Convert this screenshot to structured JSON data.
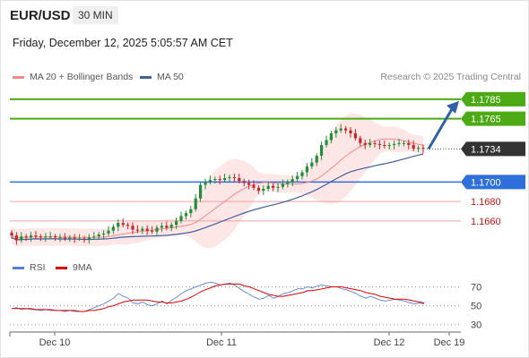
{
  "header": {
    "symbol": "EUR/USD",
    "timeframe": "30 MIN",
    "datetime": "Friday, December 12, 2025 5:05:57 AM CET",
    "research": "Research © 2025 Trading Central"
  },
  "colors": {
    "candle_up": "#1f8f3a",
    "candle_down": "#c62828",
    "ma20": "#f08a8a",
    "bollinger_fill": "#fde3e3",
    "ma50": "#3f5f9e",
    "resistance": "#4caa14",
    "pivot": "#2f6fdb",
    "support": "#f4a0a0",
    "support_text": "#cc1111",
    "current": "#333333",
    "arrow": "#2f5fa8",
    "rsi": "#5b7fd0",
    "rsi_ma": "#e00000"
  },
  "chart_data": [
    {
      "type": "candlestick",
      "legend": [
        {
          "name": "MA 20 + Bollinger Bands",
          "color": "#f08a8a"
        },
        {
          "name": "MA 50",
          "color": "#3f5f9e"
        }
      ],
      "x_labels": [
        "Dec 10",
        "Dec 11",
        "Dec 12",
        "Dec 19"
      ],
      "ylim": [
        1.1635,
        1.1795
      ],
      "levels": [
        {
          "value": 1.1785,
          "label": "1.1785",
          "kind": "resistance"
        },
        {
          "value": 1.1765,
          "label": "1.1765",
          "kind": "resistance"
        },
        {
          "value": 1.1734,
          "label": "1.1734",
          "kind": "current"
        },
        {
          "value": 1.17,
          "label": "1.1700",
          "kind": "pivot"
        },
        {
          "value": 1.168,
          "label": "1.1680",
          "kind": "support"
        },
        {
          "value": 1.166,
          "label": "1.1660",
          "kind": "support"
        }
      ],
      "forecast": {
        "from": 1.1734,
        "to": 1.1785,
        "direction": "up"
      },
      "close": [
        1.1645,
        1.164,
        1.1644,
        1.1643,
        1.1645,
        1.1644,
        1.1643,
        1.1644,
        1.1644,
        1.1643,
        1.1643,
        1.1642,
        1.1643,
        1.1642,
        1.1642,
        1.1641,
        1.1643,
        1.1644,
        1.1646,
        1.1647,
        1.165,
        1.1654,
        1.1658,
        1.1656,
        1.1655,
        1.1651,
        1.165,
        1.1652,
        1.165,
        1.1649,
        1.1653,
        1.1655,
        1.1653,
        1.1656,
        1.166,
        1.1665,
        1.1668,
        1.1672,
        1.1683,
        1.1697,
        1.17,
        1.1702,
        1.1703,
        1.1702,
        1.1704,
        1.1705,
        1.1704,
        1.1701,
        1.1699,
        1.1697,
        1.1694,
        1.1691,
        1.1693,
        1.1696,
        1.1694,
        1.1695,
        1.1698,
        1.17,
        1.1703,
        1.1706,
        1.171,
        1.1716,
        1.172,
        1.1727,
        1.1738,
        1.1743,
        1.175,
        1.1753,
        1.1755,
        1.1753,
        1.175,
        1.1745,
        1.174,
        1.1738,
        1.174,
        1.1739,
        1.1738,
        1.1737,
        1.1738,
        1.1739,
        1.174,
        1.174,
        1.1738,
        1.1734,
        1.1735,
        1.1734
      ]
    },
    {
      "type": "line",
      "legend": [
        {
          "name": "RSI",
          "color": "#5b7fd0"
        },
        {
          "name": "9MA",
          "color": "#e00000"
        }
      ],
      "y_ticks": [
        70,
        50,
        30
      ],
      "ylim": [
        25,
        80
      ],
      "series": [
        {
          "name": "RSI",
          "values": [
            47,
            48,
            46,
            47,
            46,
            46,
            45,
            46,
            45,
            45,
            45,
            44,
            45,
            44,
            44,
            44,
            46,
            48,
            50,
            52,
            55,
            58,
            63,
            60,
            58,
            53,
            52,
            54,
            51,
            50,
            52,
            55,
            52,
            56,
            59,
            63,
            66,
            68,
            70,
            72,
            74,
            75,
            74,
            72,
            73,
            74,
            72,
            68,
            65,
            62,
            59,
            57,
            58,
            61,
            58,
            60,
            63,
            64,
            66,
            68,
            68,
            70,
            69,
            71,
            72,
            71,
            70,
            70,
            68,
            67,
            65,
            63,
            60,
            58,
            60,
            58,
            56,
            55,
            56,
            57,
            56,
            55,
            53,
            52,
            53,
            52
          ]
        },
        {
          "name": "9MA",
          "values": [
            47,
            47,
            47,
            47,
            47,
            46,
            46,
            46,
            46,
            45,
            45,
            45,
            45,
            45,
            44,
            44,
            45,
            45,
            46,
            47,
            49,
            50,
            52,
            54,
            55,
            56,
            56,
            56,
            56,
            55,
            54,
            54,
            53,
            53,
            54,
            55,
            57,
            59,
            62,
            65,
            67,
            69,
            71,
            72,
            73,
            73,
            73,
            73,
            71,
            70,
            68,
            66,
            64,
            62,
            61,
            60,
            60,
            61,
            62,
            63,
            64,
            66,
            66,
            67,
            68,
            69,
            70,
            70,
            70,
            69,
            68,
            67,
            66,
            64,
            63,
            62,
            60,
            59,
            58,
            57,
            57,
            57,
            56,
            55,
            54,
            53
          ]
        }
      ]
    }
  ]
}
